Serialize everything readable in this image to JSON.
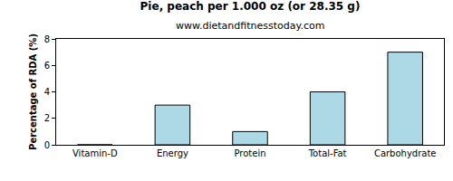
{
  "chart_data": {
    "type": "bar",
    "title": "Pie, peach per 1.000 oz (or 28.35 g)",
    "subtitle": "www.dietandfitnesstoday.com",
    "y_label": "Percentage of RDA (%)",
    "categories": [
      "Vitamin-D",
      "Energy",
      "Protein",
      "Total-Fat",
      "Carbohydrate"
    ],
    "values": [
      0,
      3,
      1,
      4,
      7
    ],
    "color": "#add8e6",
    "ylim": [
      0,
      8
    ],
    "yticks": [
      0,
      2,
      4,
      6,
      8
    ],
    "grid": false
  }
}
